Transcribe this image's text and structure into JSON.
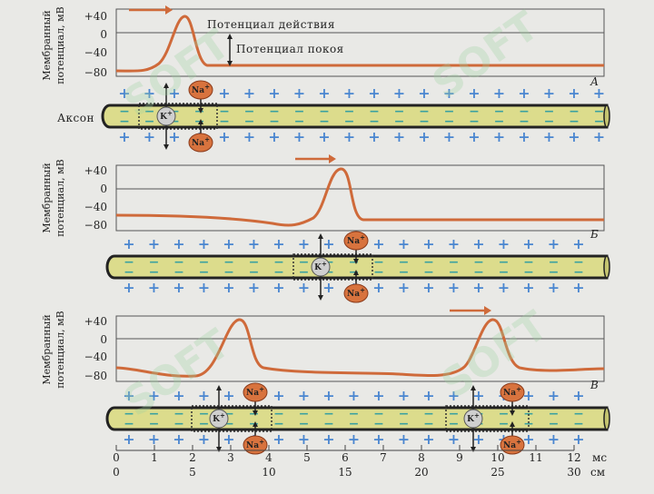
{
  "y_axis_label_line1": "Мембранный",
  "y_axis_label_line2": "потенциал, мВ",
  "y_ticks": [
    "+40",
    "0",
    "−40",
    "−80"
  ],
  "panel_labels": [
    "А",
    "Б",
    "В"
  ],
  "annotations": {
    "action_potential": "Потенциал действия",
    "resting_potential": "Потенциал покоя"
  },
  "axon_label": "Аксон",
  "ions": {
    "sodium": "Na+",
    "potassium": "K+"
  },
  "ions_display": {
    "na": "Na",
    "k": "K",
    "sup": "+"
  },
  "membrane_charges": {
    "outside": "+",
    "inside": "−"
  },
  "time_axis": {
    "ticks": [
      "0",
      "1",
      "2",
      "3",
      "4",
      "5",
      "6",
      "7",
      "8",
      "9",
      "10",
      "11",
      "12"
    ],
    "unit": "мс"
  },
  "distance_axis": {
    "ticks": [
      "0",
      "5",
      "10",
      "15",
      "20",
      "25",
      "30"
    ],
    "unit": "см"
  },
  "colors": {
    "trace": "#cf6a3a",
    "axon_fill": "#dcdc8c",
    "na_ion": "#d8733e",
    "k_ion": "#cfcfcf",
    "plus": "#4a86d0",
    "minus": "#3aa0a0"
  },
  "watermark": "SOFT"
}
